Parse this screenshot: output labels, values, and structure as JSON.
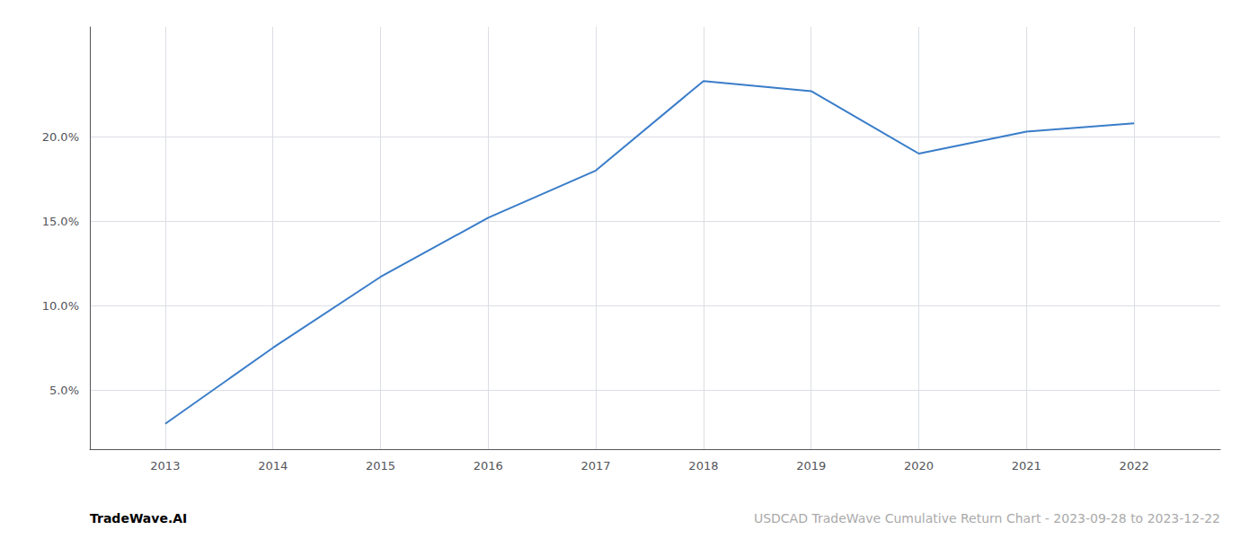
{
  "chart_data": {
    "type": "line",
    "x": [
      2013,
      2014,
      2015,
      2016,
      2017,
      2018,
      2019,
      2020,
      2021,
      2022
    ],
    "values": [
      3.0,
      7.5,
      11.7,
      15.2,
      18.0,
      23.3,
      22.7,
      19.0,
      20.3,
      20.8
    ],
    "color": "#3a7dc9",
    "xlim": [
      2012.3,
      2022.8
    ],
    "xticks": [
      2013,
      2014,
      2015,
      2016,
      2017,
      2018,
      2019,
      2020,
      2021,
      2022
    ],
    "ylim": [
      1.5,
      26.5
    ],
    "yticks": [
      {
        "value": 5.0,
        "label": "5.0%"
      },
      {
        "value": 10.0,
        "label": "10.0%"
      },
      {
        "value": 15.0,
        "label": "15.0%"
      },
      {
        "value": 20.0,
        "label": "20.0%"
      }
    ],
    "grid": true,
    "annotations": [
      "TradeWave.AI",
      "USDCAD TradeWave Cumulative Return Chart - 2023-09-28 to 2023-12-22"
    ]
  }
}
